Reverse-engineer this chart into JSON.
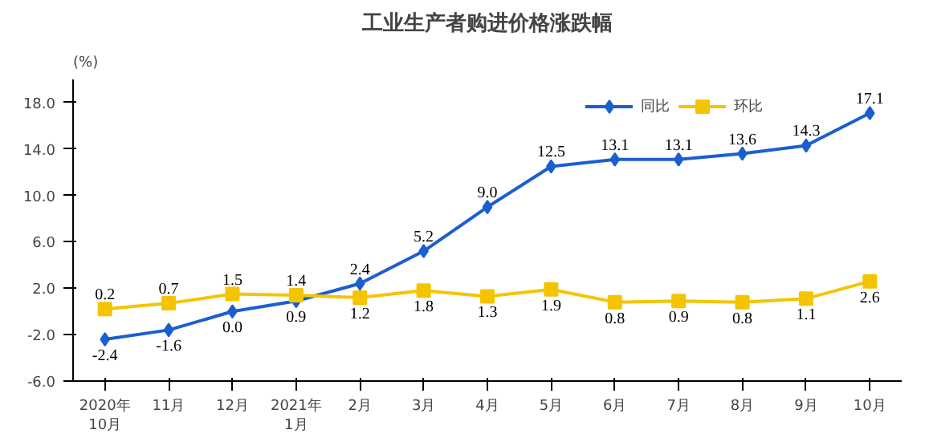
{
  "chart_data": {
    "type": "line",
    "title": "工业生产者购进价格涨跌幅",
    "ylabel": "(%)",
    "categories": [
      "2020年\n10月",
      "11月",
      "12月",
      "2021年\n1月",
      "2月",
      "3月",
      "4月",
      "5月",
      "6月",
      "7月",
      "8月",
      "9月",
      "10月"
    ],
    "series": [
      {
        "name": "同比",
        "color": "#1a5fd0",
        "marker": "diamond",
        "values": [
          -2.4,
          -1.6,
          0.0,
          0.9,
          2.4,
          5.2,
          9.0,
          12.5,
          13.1,
          13.1,
          13.6,
          14.3,
          17.1
        ],
        "value_labels": [
          "-2.4",
          "-1.6",
          "0.0",
          "0.9",
          "2.4",
          "5.2",
          "9.0",
          "12.5",
          "13.1",
          "13.1",
          "13.6",
          "14.3",
          "17.1"
        ]
      },
      {
        "name": "环比",
        "color": "#f5c400",
        "marker": "square",
        "values": [
          0.2,
          0.7,
          1.5,
          1.4,
          1.2,
          1.8,
          1.3,
          1.9,
          0.8,
          0.9,
          0.8,
          1.1,
          2.6
        ],
        "value_labels": [
          "0.2",
          "0.7",
          "1.5",
          "1.4",
          "1.2",
          "1.8",
          "1.3",
          "1.9",
          "0.8",
          "0.9",
          "0.8",
          "1.1",
          "2.6"
        ]
      }
    ],
    "ylim": [
      -6,
      20
    ],
    "yticks": [
      {
        "value": -6,
        "label": "-6.0"
      },
      {
        "value": -2,
        "label": "-2.0"
      },
      {
        "value": 2,
        "label": "2.0"
      },
      {
        "value": 6,
        "label": "6.0"
      },
      {
        "value": 10,
        "label": "10.0"
      },
      {
        "value": 14,
        "label": "14.0"
      },
      {
        "value": 18,
        "label": "18.0"
      }
    ],
    "legend": "top right",
    "grid": false
  }
}
